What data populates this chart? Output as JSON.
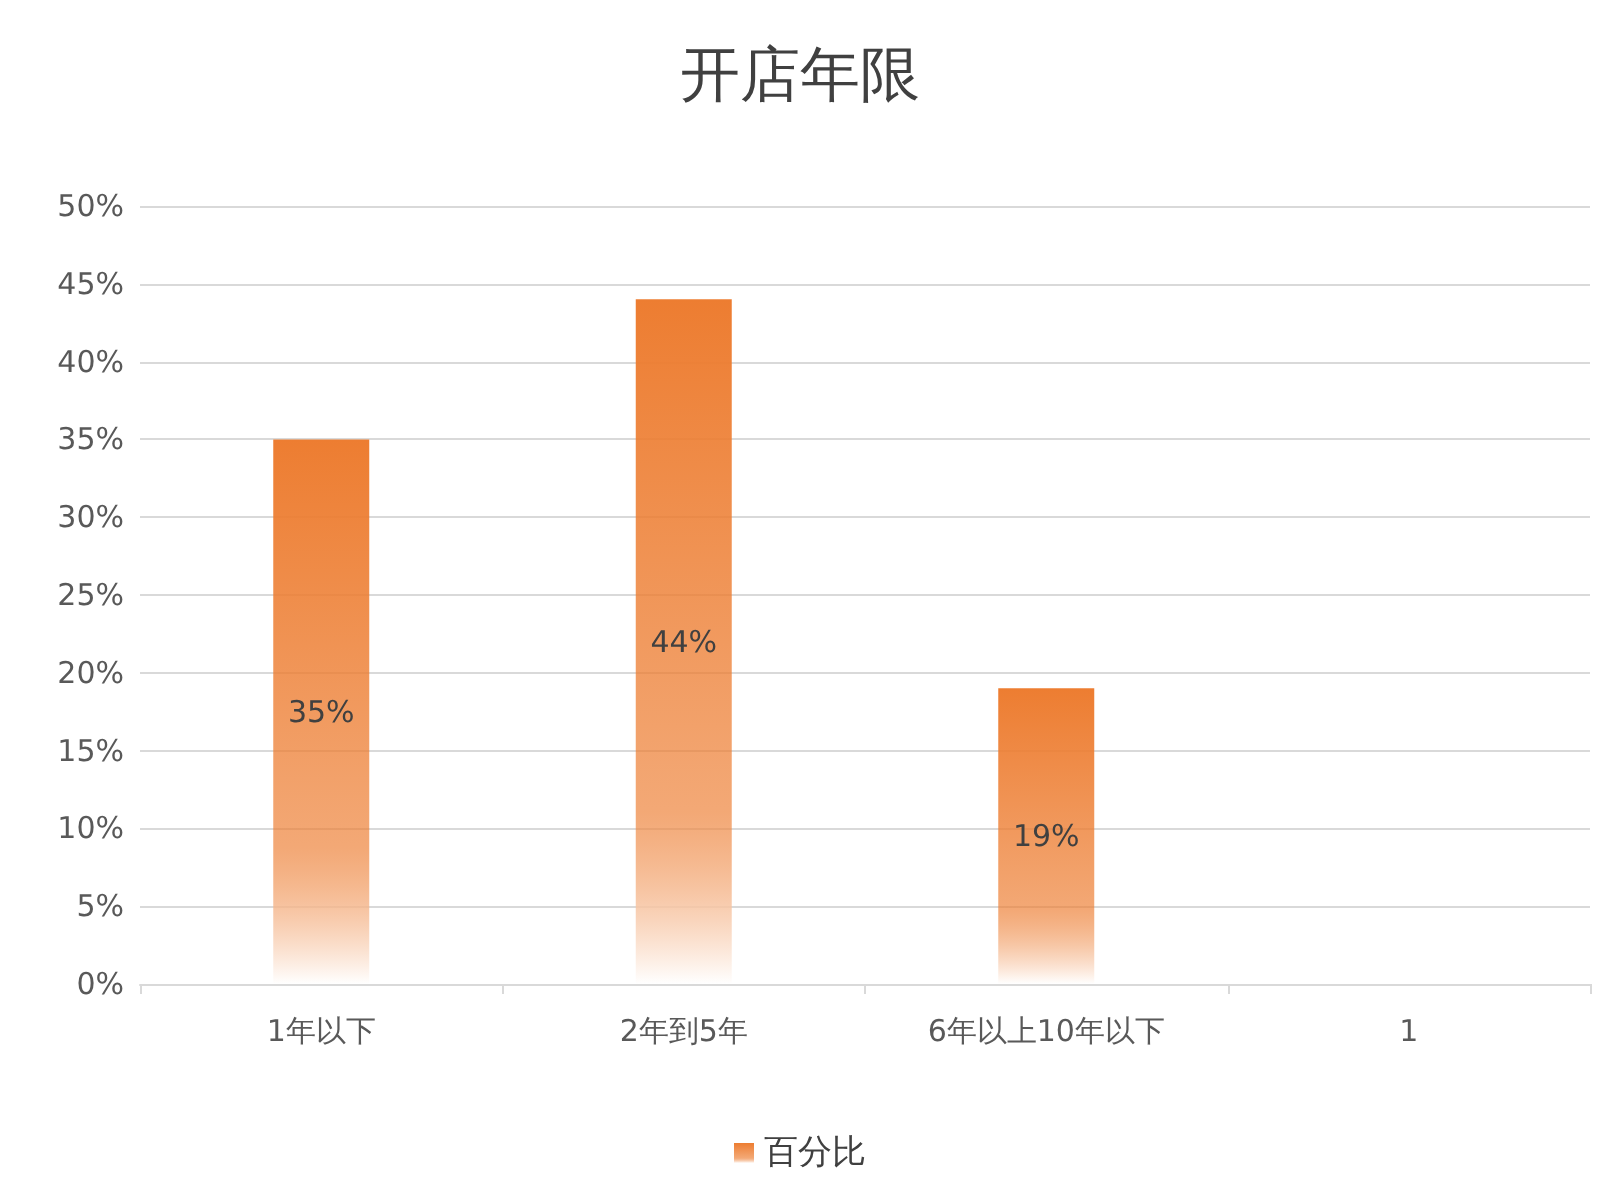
{
  "chart_data": {
    "type": "bar",
    "title": "开店年限",
    "categories": [
      "1年以下",
      "2年到5年",
      "6年以上10年以下",
      "1"
    ],
    "series": [
      {
        "name": "百分比",
        "color": "#ed7d31",
        "values": [
          35,
          44,
          19,
          null
        ],
        "value_labels": [
          "35%",
          "44%",
          "19%",
          null
        ]
      }
    ],
    "ylim": [
      0,
      50
    ],
    "yticks": [
      {
        "value": 0,
        "label": "0%"
      },
      {
        "value": 5,
        "label": "5%"
      },
      {
        "value": 10,
        "label": "10%"
      },
      {
        "value": 15,
        "label": "15%"
      },
      {
        "value": 20,
        "label": "20%"
      },
      {
        "value": 25,
        "label": "25%"
      },
      {
        "value": 30,
        "label": "30%"
      },
      {
        "value": 35,
        "label": "35%"
      },
      {
        "value": 40,
        "label": "40%"
      },
      {
        "value": 45,
        "label": "45%"
      },
      {
        "value": 50,
        "label": "50%"
      }
    ],
    "grid": "y",
    "legend": "bottom"
  }
}
